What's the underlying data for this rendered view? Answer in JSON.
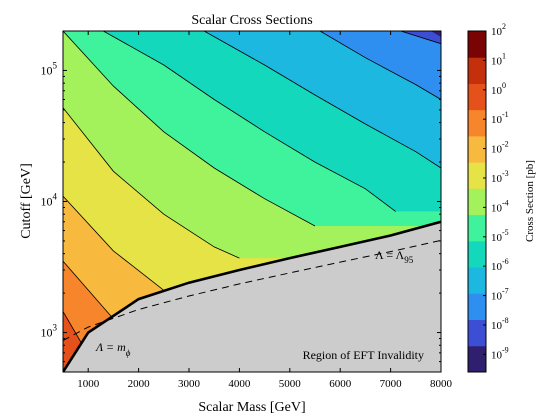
{
  "chart_data": {
    "type": "heatmap",
    "title": "Scalar Cross Sections",
    "xlabel": "Scalar Mass [GeV]",
    "ylabel": "Cutoff [GeV]",
    "xlim": [
      500,
      8000
    ],
    "ylim": [
      500,
      200000
    ],
    "yscale": "log",
    "x_ticks": [
      "1000",
      "2000",
      "3000",
      "4000",
      "5000",
      "6000",
      "7000",
      "8000"
    ],
    "x_tick_values": [
      1000,
      2000,
      3000,
      4000,
      5000,
      6000,
      7000,
      8000
    ],
    "y_ticks": [
      {
        "base": "10",
        "exp": "3",
        "value": 1000
      },
      {
        "base": "10",
        "exp": "4",
        "value": 10000
      },
      {
        "base": "10",
        "exp": "5",
        "value": 100000
      }
    ],
    "colorbar": {
      "label": "Cross Section [pb]",
      "scale": "log",
      "range_exp": [
        -9.6,
        2
      ],
      "ticks": [
        {
          "base": "10",
          "exp": "2"
        },
        {
          "base": "10",
          "exp": "1"
        },
        {
          "base": "10",
          "exp": "0"
        },
        {
          "base": "10",
          "exp": "-1"
        },
        {
          "base": "10",
          "exp": "-2"
        },
        {
          "base": "10",
          "exp": "-3"
        },
        {
          "base": "10",
          "exp": "-4"
        },
        {
          "base": "10",
          "exp": "-5"
        },
        {
          "base": "10",
          "exp": "-6"
        },
        {
          "base": "10",
          "exp": "-7"
        },
        {
          "base": "10",
          "exp": "-8"
        },
        {
          "base": "10",
          "exp": "-9"
        }
      ],
      "colors": [
        "#2f1f6e",
        "#3c4fd4",
        "#2f8ff0",
        "#1cb8e0",
        "#13d8bc",
        "#3ff39c",
        "#a3f25c",
        "#e5e345",
        "#f8ba3e",
        "#f7852b",
        "#e4511a",
        "#c42f0c",
        "#7a0403"
      ]
    },
    "contours": {
      "levels": [
        {
          "exp": 1.0,
          "points": [
            [
              500,
              500
            ],
            [
              1100,
              500
            ]
          ]
        },
        {
          "exp": 0.0,
          "points": [
            [
              500,
              1450
            ],
            [
              1200,
              500
            ]
          ]
        },
        {
          "exp": -1.0,
          "points": [
            [
              500,
              3500
            ],
            [
              1600,
              1150
            ]
          ]
        },
        {
          "exp": -2.0,
          "points": [
            [
              500,
              11000
            ],
            [
              1500,
              4200
            ],
            [
              2500,
              2100
            ]
          ]
        },
        {
          "exp": -3.0,
          "points": [
            [
              500,
              52000
            ],
            [
              1500,
              17000
            ],
            [
              2500,
              8000
            ],
            [
              3500,
              4500
            ],
            [
              4000,
              3700
            ]
          ]
        },
        {
          "exp": -4.0,
          "points": [
            [
              500,
              200000
            ],
            [
              1500,
              76000
            ],
            [
              2500,
              34000
            ],
            [
              3500,
              18000
            ],
            [
              4500,
              10500
            ],
            [
              5500,
              6500
            ]
          ]
        },
        {
          "exp": -5.0,
          "points": [
            [
              1300,
              200000
            ],
            [
              2500,
              110000
            ],
            [
              3500,
              60000
            ],
            [
              4500,
              34000
            ],
            [
              5500,
              20000
            ],
            [
              6500,
              12500
            ],
            [
              7100,
              8400
            ]
          ]
        },
        {
          "exp": -6.0,
          "points": [
            [
              3300,
              200000
            ],
            [
              4500,
              110000
            ],
            [
              5500,
              65000
            ],
            [
              6500,
              39000
            ],
            [
              7500,
              24000
            ],
            [
              8000,
              18000
            ]
          ]
        },
        {
          "exp": -7.0,
          "points": [
            [
              5600,
              200000
            ],
            [
              6500,
              125000
            ],
            [
              7500,
              78000
            ],
            [
              8000,
              60000
            ]
          ]
        },
        {
          "exp": -8.0,
          "points": [
            [
              7200,
              200000
            ],
            [
              8000,
              160000
            ]
          ]
        }
      ]
    },
    "eft_boundary": [
      [
        500,
        500
      ],
      [
        1000,
        1000
      ],
      [
        2000,
        1800
      ],
      [
        3000,
        2400
      ],
      [
        4000,
        3000
      ],
      [
        5000,
        3700
      ],
      [
        6000,
        4500
      ],
      [
        7000,
        5500
      ],
      [
        8000,
        7000
      ]
    ],
    "lambda95_curve": [
      [
        500,
        870
      ],
      [
        1000,
        1100
      ],
      [
        2000,
        1500
      ],
      [
        3000,
        1900
      ],
      [
        4000,
        2350
      ],
      [
        5000,
        2850
      ],
      [
        6000,
        3450
      ],
      [
        7000,
        4150
      ],
      [
        8000,
        5050
      ]
    ],
    "annotations": {
      "lambda_m_base": "Λ = m",
      "lambda_m_sub": "ϕ",
      "lambda_95_base": "Λ = Λ",
      "lambda_95_sub": "95",
      "region_label": "Region of EFT Invalidity"
    },
    "invalid_region_color": "#cccccc"
  }
}
